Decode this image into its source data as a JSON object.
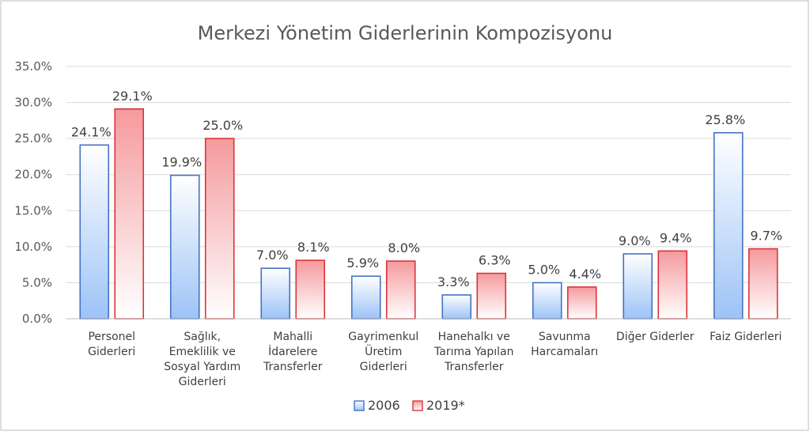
{
  "chart_data": {
    "type": "bar",
    "title": "Merkezi Yönetim Giderlerinin Kompozisyonu",
    "xlabel": "",
    "ylabel": "",
    "ylim": [
      0,
      35
    ],
    "y_ticks": [
      "0.0%",
      "5.0%",
      "10.0%",
      "15.0%",
      "20.0%",
      "25.0%",
      "30.0%",
      "35.0%"
    ],
    "grid": true,
    "legend_position": "bottom",
    "categories": [
      [
        "Personel",
        "Giderleri"
      ],
      [
        "Sağlık,",
        "Emeklilik ve",
        "Sosyal Yardım",
        "Giderleri"
      ],
      [
        "Mahalli",
        "İdarelere",
        "Transferler"
      ],
      [
        "Gayrimenkul",
        "Üretim",
        "Giderleri"
      ],
      [
        "Hanehalkı ve",
        "Tarıma Yapılan",
        "Transferler"
      ],
      [
        "Savunma",
        "Harcamaları"
      ],
      [
        "Diğer Giderler"
      ],
      [
        "Faiz Giderleri"
      ]
    ],
    "series": [
      {
        "name": "2006",
        "values": [
          24.1,
          19.9,
          7.0,
          5.9,
          3.3,
          5.0,
          9.0,
          25.8
        ],
        "labels": [
          "24.1%",
          "19.9%",
          "7.0%",
          "5.9%",
          "3.3%",
          "5.0%",
          "9.0%",
          "25.8%"
        ],
        "color": "#4472C4",
        "fill_top": "#ffffff",
        "fill_bottom": "#9DC3F7"
      },
      {
        "name": "2019*",
        "values": [
          29.1,
          25.0,
          8.1,
          8.0,
          6.3,
          4.4,
          9.4,
          9.7
        ],
        "labels": [
          "29.1%",
          "25.0%",
          "8.1%",
          "8.0%",
          "6.3%",
          "4.4%",
          "9.4%",
          "9.7%"
        ],
        "color": "#D9343A",
        "fill_top": "#F59A9D",
        "fill_bottom": "#FFFFFF"
      }
    ]
  }
}
